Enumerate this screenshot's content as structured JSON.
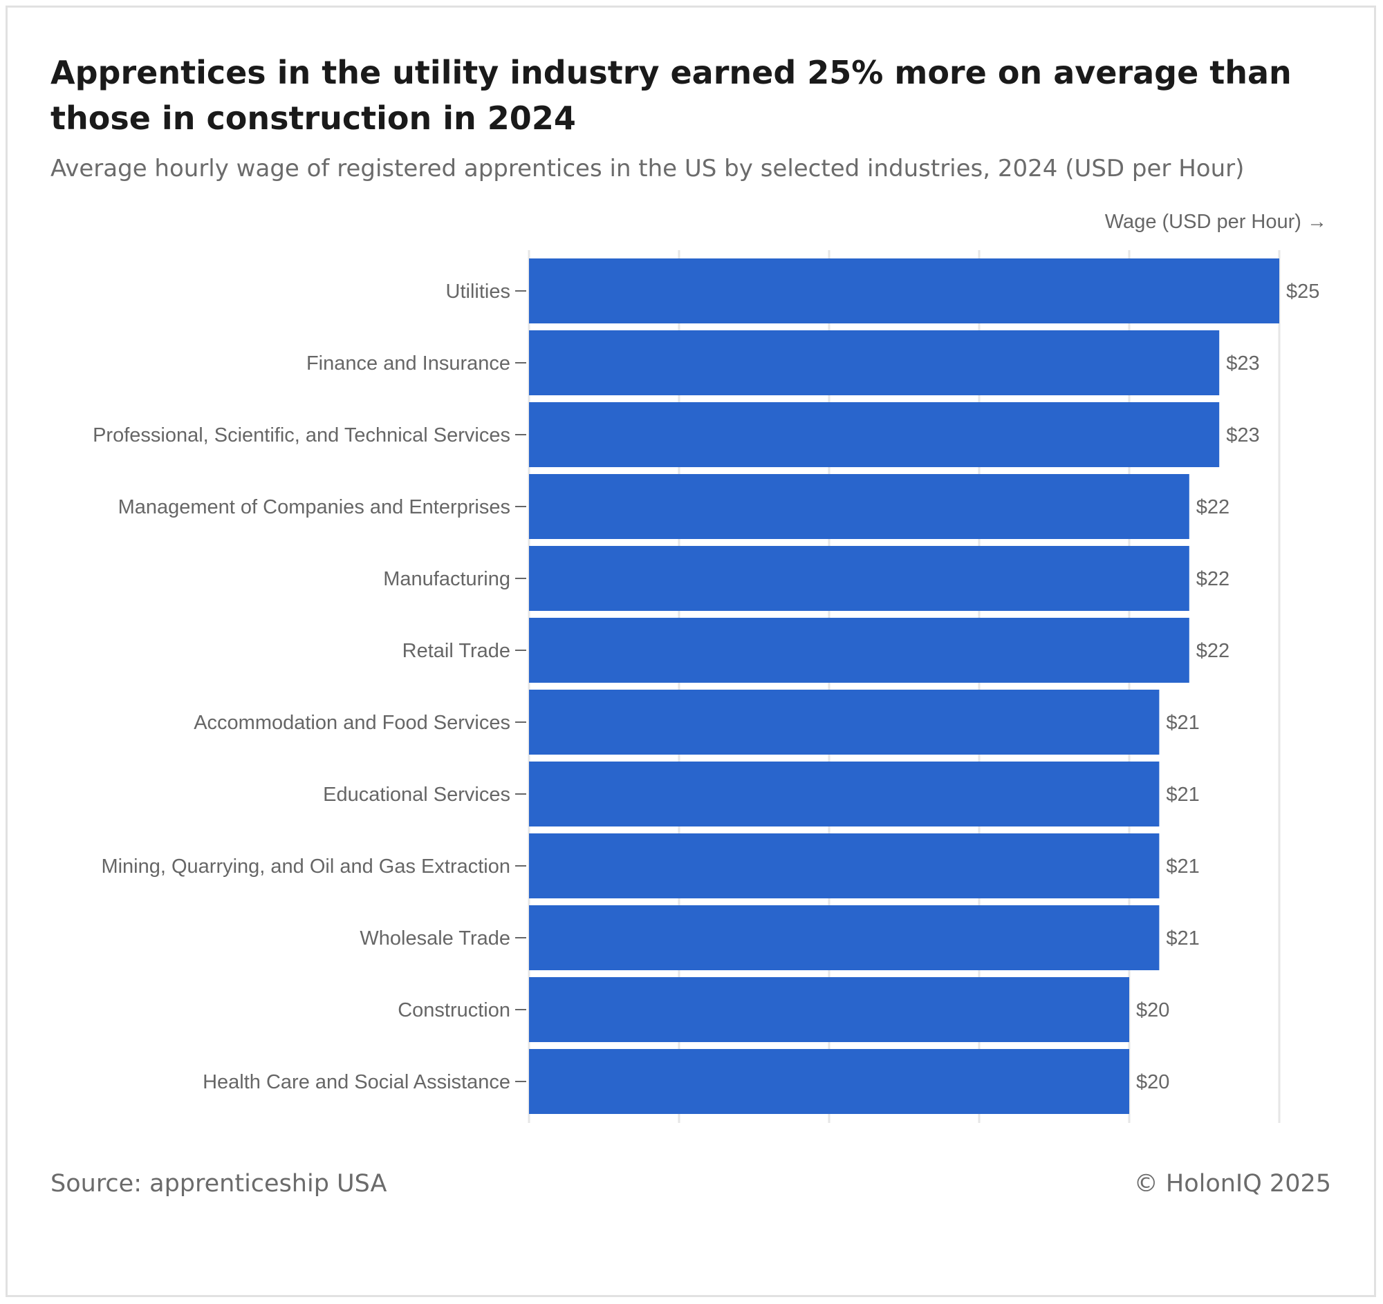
{
  "title": "Apprentices in the utility industry earned 25% more on average than those in construction in 2024",
  "subtitle": "Average hourly wage of registered apprentices in the US by selected industries, 2024 (USD per Hour)",
  "source": "Source: apprenticeship USA",
  "credit": "© HolonIQ 2025",
  "colors": {
    "bar": "#2965CC",
    "grid": "#e6e6e6",
    "text": "#666666"
  },
  "chart_data": {
    "type": "bar",
    "orientation": "horizontal",
    "xlabel": "Wage (USD per Hour) →",
    "ylabel": "",
    "xlim": [
      0,
      25
    ],
    "value_prefix": "$",
    "grid": true,
    "categories": [
      "Utilities",
      "Finance and Insurance",
      "Professional, Scientific, and Technical Services",
      "Management of Companies and Enterprises",
      "Manufacturing",
      "Retail Trade",
      "Accommodation and Food Services",
      "Educational Services",
      "Mining, Quarrying, and Oil and Gas Extraction",
      "Wholesale Trade",
      "Construction",
      "Health Care and Social Assistance"
    ],
    "values": [
      25,
      23,
      23,
      22,
      22,
      22,
      21,
      21,
      21,
      21,
      20,
      20
    ]
  }
}
